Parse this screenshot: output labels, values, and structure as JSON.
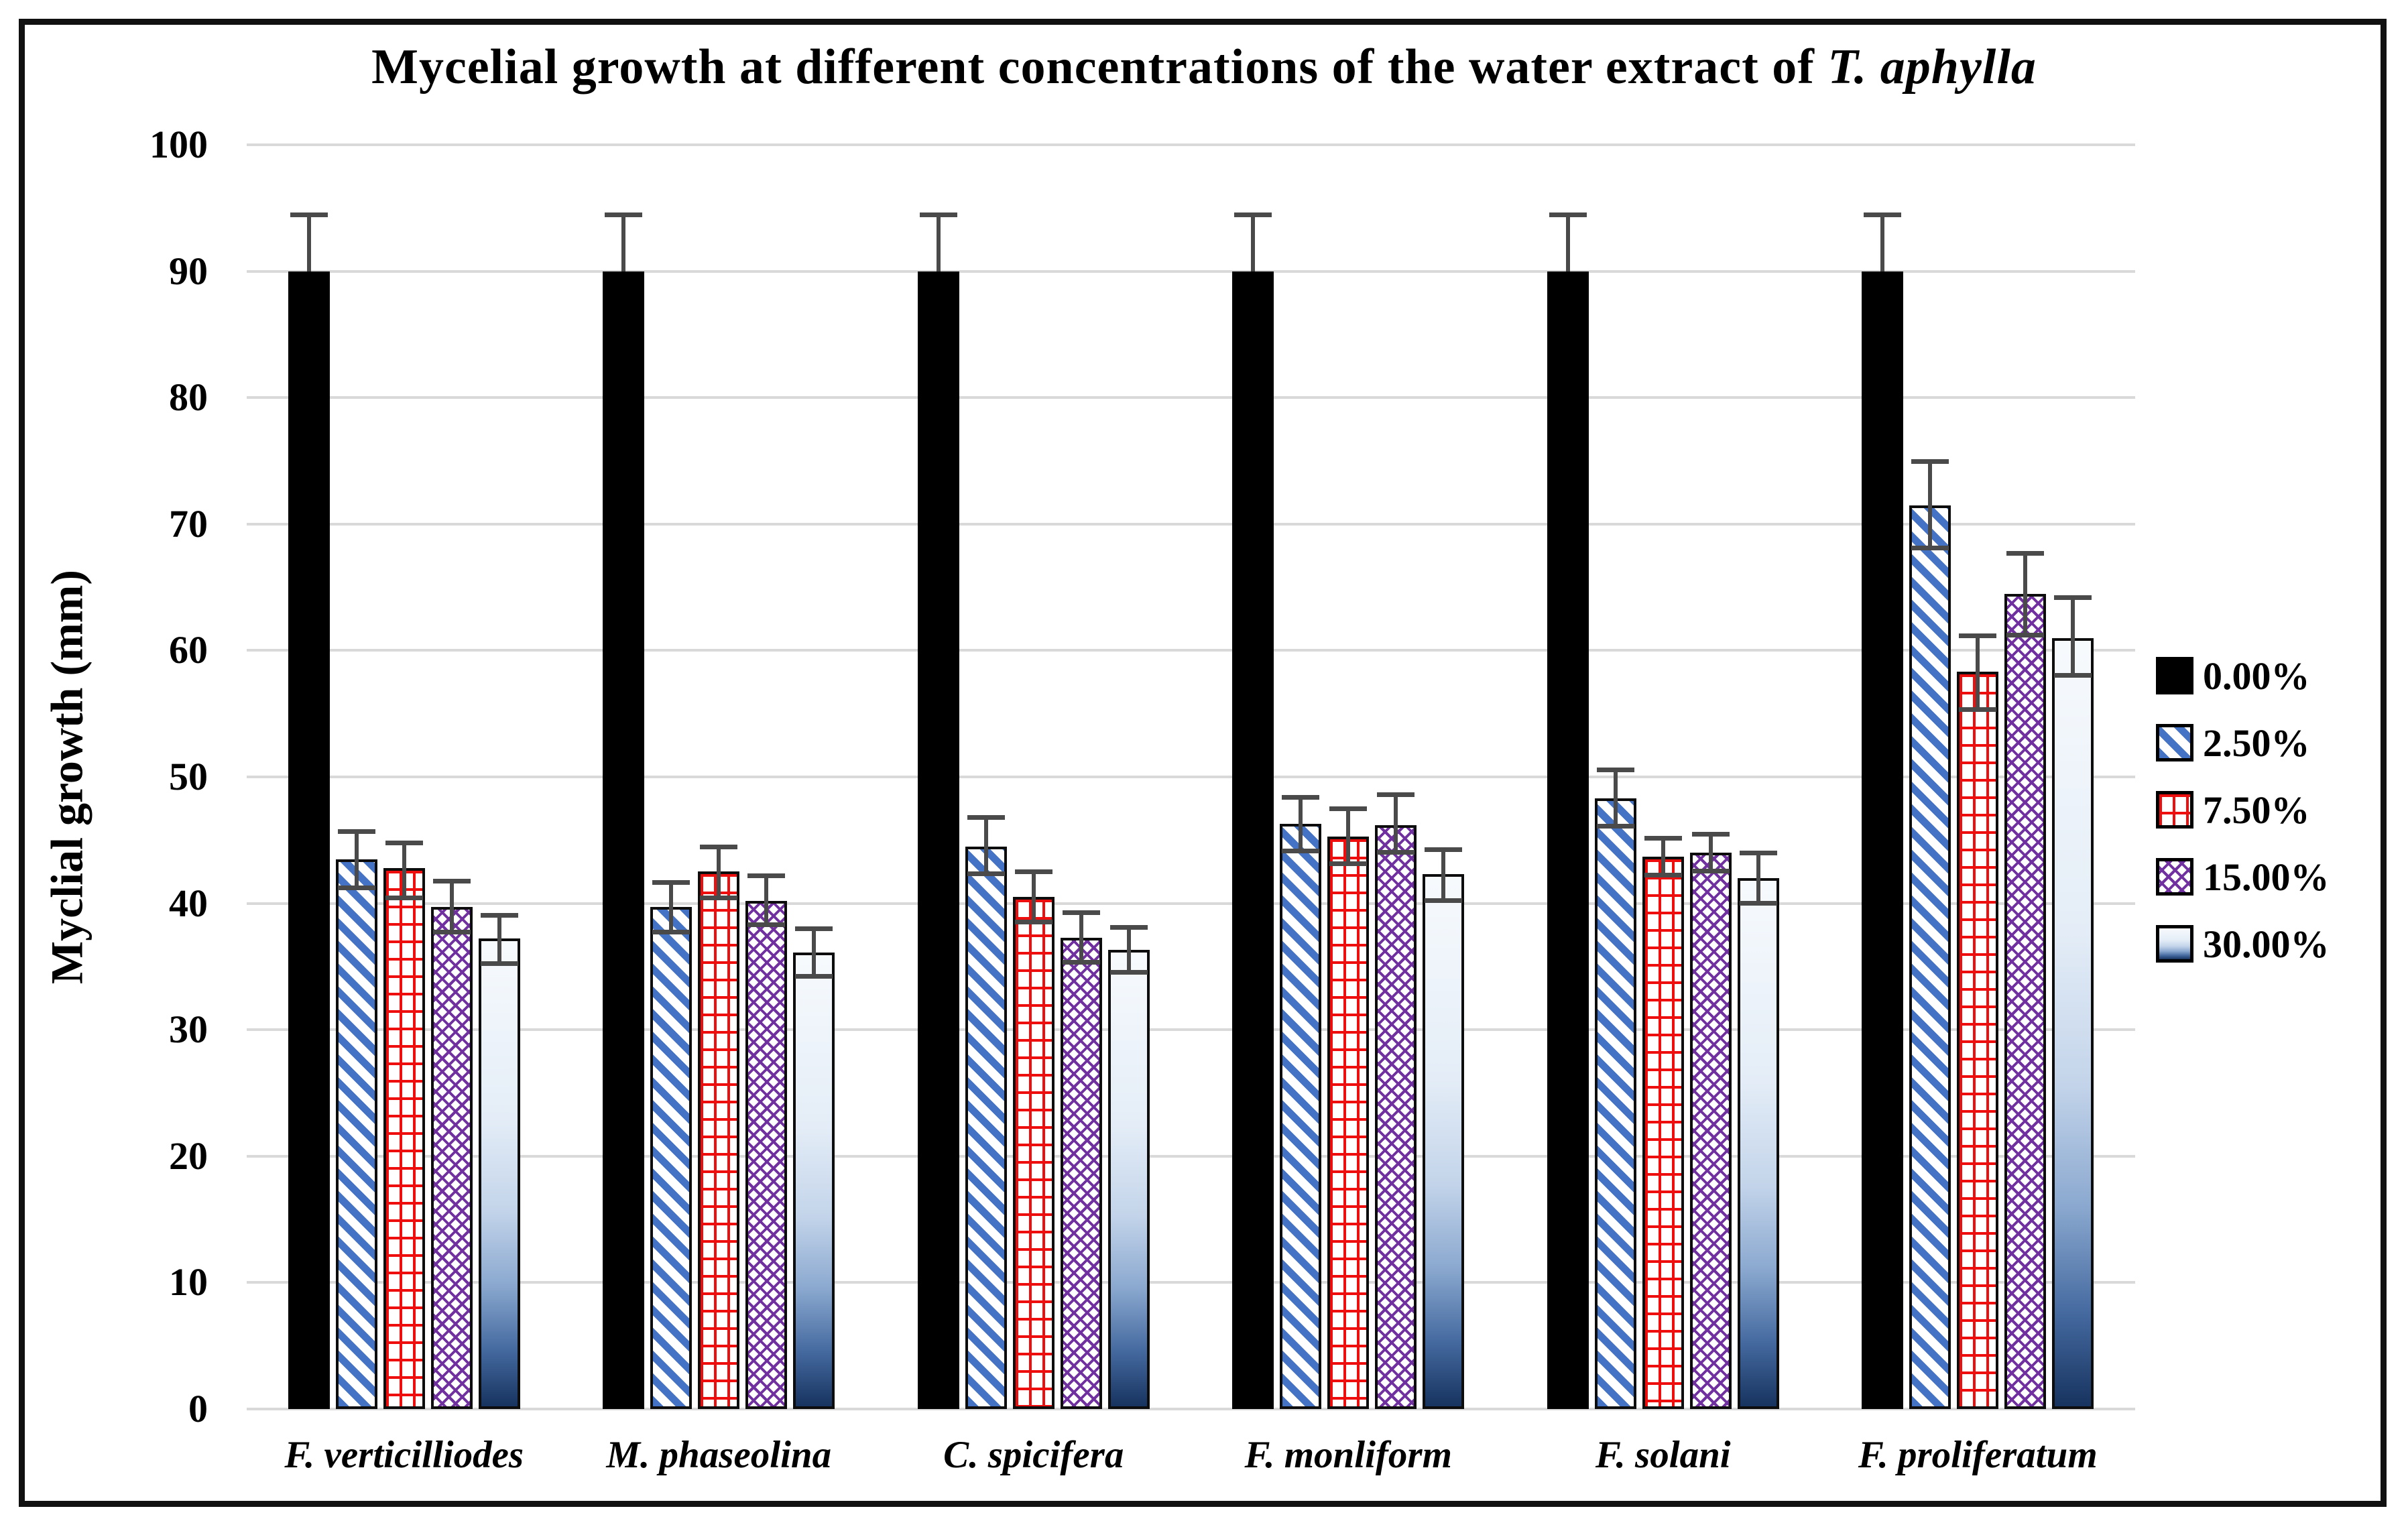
{
  "figure": {
    "title_main": "Mycelial growth at different concentrations of the water  extract of ",
    "title_species": "T. aphylla",
    "y_axis_title": "Myclial growth (mm)"
  },
  "chart_data": {
    "type": "bar",
    "title": "Mycelial growth at different concentrations of the water  extract of T. aphylla",
    "xlabel": "",
    "ylabel": "Myclial growth (mm)",
    "ylim": [
      0,
      100
    ],
    "yticks": [
      0,
      10,
      20,
      30,
      40,
      50,
      60,
      70,
      80,
      90,
      100
    ],
    "grid": true,
    "legend_position": "right",
    "categories": [
      "F. verticilliodes",
      "M. phaseolina",
      "C. spicifera",
      "F. monliform",
      "F. solani",
      "F. proliferatum"
    ],
    "series": [
      {
        "name": "0.00%",
        "pattern": "solid-black",
        "values": [
          90,
          90,
          90,
          90,
          90,
          90
        ],
        "error_plus": [
          4.5,
          4.5,
          4.5,
          4.5,
          4.5,
          4.5
        ],
        "error_minus": [
          0,
          0,
          0,
          0,
          0,
          0
        ]
      },
      {
        "name": "2.50%",
        "pattern": "blue-diagonal-stripes",
        "values": [
          43.5,
          39.7,
          44.5,
          46.3,
          48.3,
          71.5
        ],
        "error_plus": [
          2.2,
          2.0,
          2.3,
          2.1,
          2.3,
          3.5
        ],
        "error_minus": [
          2.3,
          2.0,
          2.2,
          2.2,
          2.2,
          3.4
        ]
      },
      {
        "name": "7.50%",
        "pattern": "red-bricks",
        "values": [
          42.8,
          42.5,
          40.5,
          45.3,
          43.7,
          58.3
        ],
        "error_plus": [
          2.0,
          2.0,
          2.0,
          2.2,
          1.5,
          2.9
        ],
        "error_minus": [
          2.4,
          2.1,
          2.0,
          2.2,
          1.5,
          3.0
        ]
      },
      {
        "name": "15.00%",
        "pattern": "purple-lattice",
        "values": [
          39.7,
          40.2,
          37.3,
          46.2,
          44.0,
          64.5
        ],
        "error_plus": [
          2.1,
          2.0,
          2.0,
          2.4,
          1.5,
          3.2
        ],
        "error_minus": [
          2.0,
          1.9,
          2.0,
          2.2,
          1.5,
          3.3
        ]
      },
      {
        "name": "30.00%",
        "pattern": "blue-gradient",
        "values": [
          37.2,
          36.1,
          36.3,
          42.3,
          42.0,
          61.0
        ],
        "error_plus": [
          1.9,
          1.9,
          1.8,
          2.0,
          2.0,
          3.2
        ],
        "error_minus": [
          2.0,
          1.9,
          1.8,
          2.1,
          2.0,
          3.0
        ]
      }
    ]
  },
  "colors": {
    "stripe_blue": "#4472c4",
    "brick_red": "#ef0e0e",
    "lattice_purple": "#7030a0",
    "gradient_dark_blue": "#17335f",
    "error_bar": "#4a4a4a",
    "gridline": "#d9d9d9",
    "frame_border": "#111111"
  }
}
